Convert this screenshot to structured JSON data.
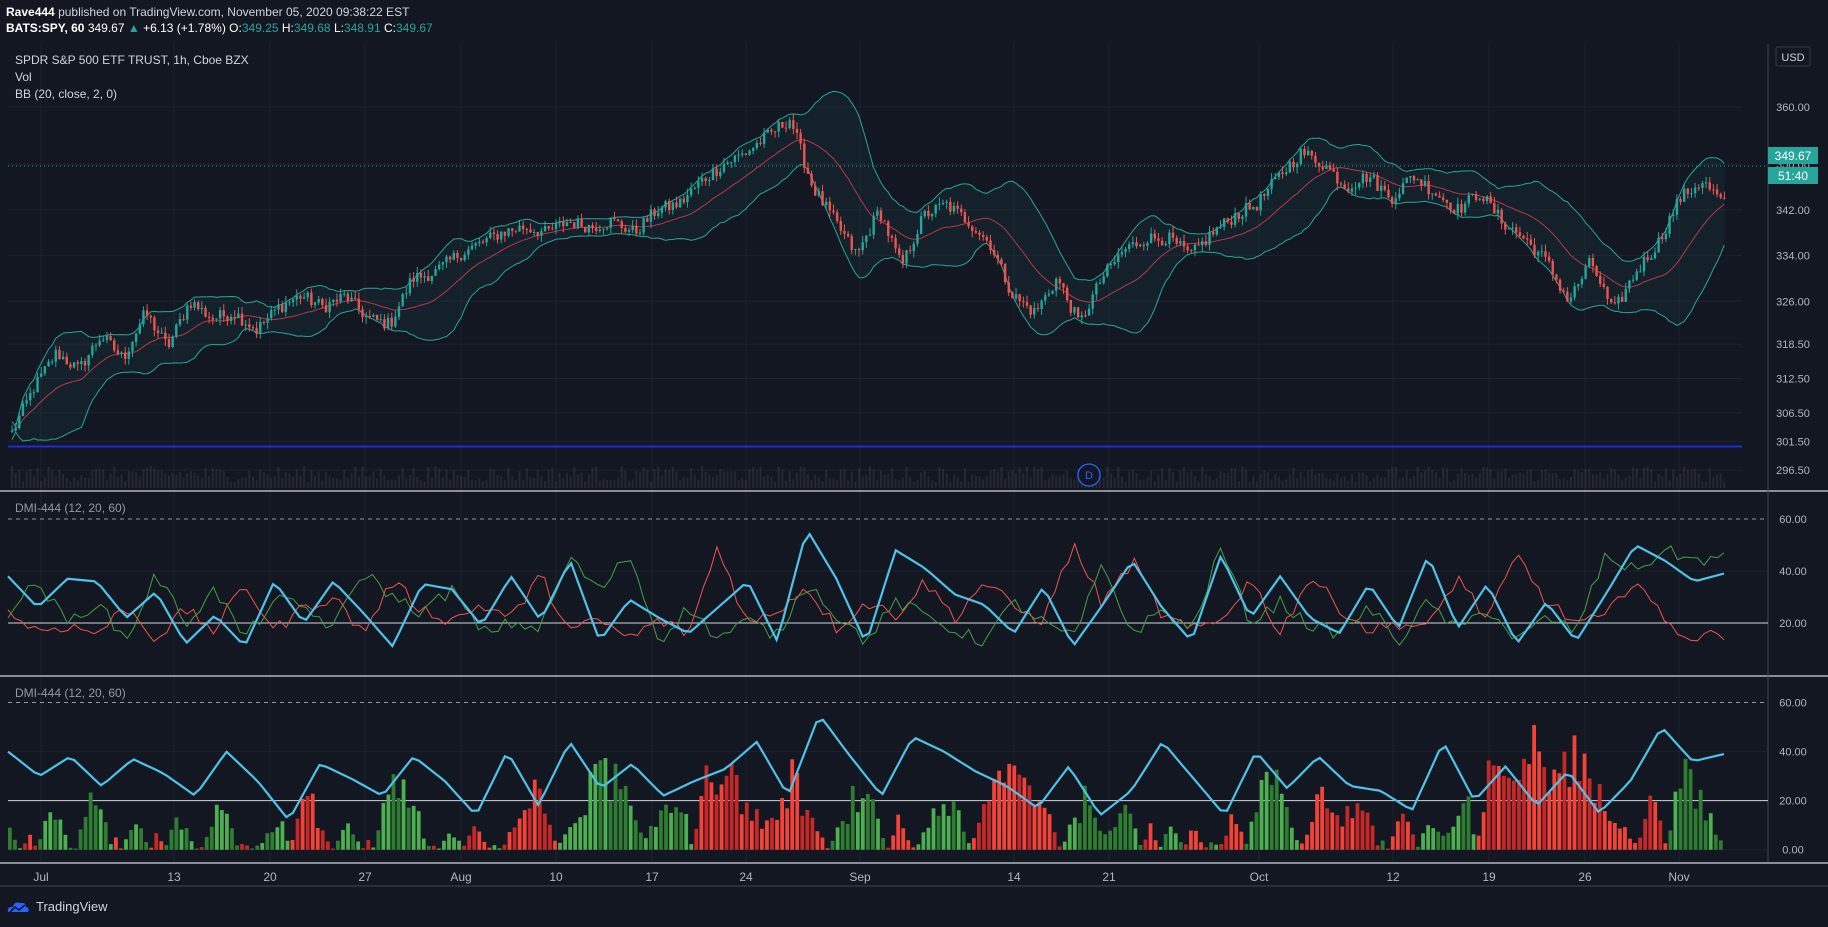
{
  "header": {
    "author": "Rave444",
    "published": "published on TradingView.com, November 05, 2020 09:38:22 EST",
    "symbol": "BATS:SPY, 60",
    "last": "349.67",
    "change": "+6.13 (+1.78%)",
    "o_label": "O:",
    "o_value": "349.25",
    "h_label": "H:",
    "h_value": "349.68",
    "l_label": "L:",
    "l_value": "348.91",
    "c_label": "C:",
    "c_value": "349.67"
  },
  "legends": {
    "main_title": "SPDR S&P 500 ETF TRUST, 1h, Cboe BZX",
    "vol": "Vol",
    "bb": "BB (20, close, 2, 0)",
    "dmi1": "DMI-444 (12, 20, 60)",
    "dmi2": "DMI-444 (12, 20, 60)"
  },
  "badges": {
    "currency": "USD",
    "price": "349.67",
    "countdown": "51:40",
    "dividend_marker": "D"
  },
  "colors": {
    "background": "#131722",
    "up": "#26a69a",
    "down": "#ef5350",
    "bb_band": "#26a69a",
    "bb_basis": "#b7364f",
    "adx": "#4dc3e8",
    "di_plus": "#43a047",
    "di_minus": "#ef5350",
    "support_line": "#1c2cd6"
  },
  "footer": {
    "brand": "TradingView"
  },
  "chart_data": [
    {
      "type": "candlestick",
      "title": "SPDR S&P 500 ETF TRUST, 1h, Cboe BZX",
      "x_ticks": [
        "Jul",
        "13",
        "20",
        "27",
        "Aug",
        "10",
        "17",
        "24",
        "Sep",
        "14",
        "21",
        "Oct",
        "12",
        "19",
        "26",
        "Nov"
      ],
      "y_ticks": [
        296.5,
        301.5,
        306.5,
        312.5,
        318.5,
        326.0,
        334.0,
        342.0,
        350.0,
        360.0
      ],
      "ylim": [
        293,
        371
      ],
      "close_path": [
        303,
        311,
        317,
        314,
        320,
        316,
        324,
        318,
        326,
        323,
        324,
        321,
        325,
        327,
        325,
        327,
        323,
        322,
        330,
        331,
        334,
        336,
        338,
        339,
        338,
        340,
        339,
        340,
        338,
        342,
        343,
        347,
        350,
        352,
        355,
        358,
        346,
        340,
        334,
        342,
        332,
        341,
        343,
        340,
        336,
        327,
        324,
        330,
        322,
        330,
        335,
        337,
        337,
        334,
        338,
        341,
        343,
        348,
        352,
        350,
        346,
        348,
        344,
        348,
        345,
        342,
        345,
        340,
        337,
        333,
        326,
        333,
        324,
        331,
        336,
        344,
        347,
        343
      ],
      "support_level": 300.6,
      "bollinger": {
        "length": 20,
        "source": "close",
        "mult": 2
      }
    },
    {
      "type": "line",
      "title": "DMI-444 (12, 20, 60)",
      "y_ticks": [
        20.0,
        40.0,
        60.0
      ],
      "ylim": [
        0,
        70
      ],
      "series": [
        {
          "role": "ADX",
          "values": [
            38,
            26,
            37,
            36,
            22,
            32,
            12,
            23,
            11,
            36,
            20,
            36,
            24,
            11,
            35,
            33,
            19,
            38,
            21,
            44,
            13,
            29,
            22,
            16,
            26,
            36,
            13,
            56,
            37,
            12,
            48,
            41,
            31,
            27,
            16,
            34,
            11,
            27,
            44,
            26,
            13,
            46,
            22,
            38,
            22,
            16,
            35,
            18,
            46,
            18,
            35,
            12,
            28,
            13,
            31,
            50,
            44,
            36,
            39
          ]
        },
        {
          "role": "+DI",
          "values": [
            24,
            36,
            20,
            28,
            13,
            39,
            20,
            33,
            14,
            29,
            26,
            18,
            40,
            30,
            24,
            33,
            16,
            20,
            18,
            45,
            32,
            47,
            13,
            26,
            14,
            21,
            15,
            36,
            23,
            13,
            28,
            23,
            17,
            13,
            28,
            20,
            14,
            42,
            16,
            25,
            17,
            49,
            20,
            28,
            19,
            16,
            26,
            13,
            28,
            17,
            26,
            13,
            22,
            17,
            46,
            40,
            48,
            44,
            45
          ]
        },
        {
          "role": "-DI",
          "values": [
            24,
            17,
            19,
            16,
            26,
            14,
            25,
            17,
            35,
            17,
            26,
            30,
            16,
            36,
            25,
            21,
            27,
            22,
            38,
            17,
            21,
            14,
            21,
            16,
            50,
            19,
            25,
            34,
            18,
            28,
            23,
            36,
            22,
            36,
            26,
            21,
            50,
            27,
            44,
            23,
            17,
            21,
            37,
            16,
            38,
            26,
            17,
            20,
            18,
            38,
            21,
            46,
            28,
            20,
            22,
            38,
            20,
            14,
            16
          ]
        }
      ]
    },
    {
      "type": "bar",
      "title": "DMI-444 (12, 20, 60)",
      "y_ticks": [
        0.0,
        20.0,
        40.0,
        60.0
      ],
      "ylim": [
        -5,
        70
      ],
      "histogram_envelope": [
        9,
        -8,
        25,
        -3,
        28,
        -5,
        13,
        -8,
        16,
        -3,
        22,
        -4,
        5,
        12,
        -30,
        -5,
        12,
        -6,
        31,
        24,
        -3,
        9,
        -12,
        4,
        -14,
        -30,
        3,
        20,
        40,
        30,
        3,
        20,
        20,
        -44,
        -35,
        -20,
        -10,
        -35,
        -14,
        5,
        26,
        18,
        -15,
        3,
        24,
        15,
        -16,
        -42,
        -33,
        -23,
        7,
        26,
        6,
        20,
        -12,
        17,
        -12,
        5,
        -20,
        22,
        40,
        2,
        -28,
        -14,
        -25,
        6,
        -22,
        13,
        6,
        23,
        -34,
        -37,
        -50,
        -37,
        -47,
        -28,
        -18,
        -4,
        -30,
        40,
        26,
        4
      ],
      "series": [
        {
          "role": "ADX",
          "values": [
            40,
            30,
            38,
            26,
            37,
            31,
            22,
            40,
            28,
            12,
            35,
            29,
            22,
            38,
            28,
            14,
            40,
            18,
            44,
            25,
            35,
            22,
            28,
            33,
            44,
            22,
            55,
            38,
            22,
            46,
            40,
            32,
            26,
            17,
            34,
            14,
            24,
            44,
            29,
            14,
            40,
            25,
            38,
            26,
            24,
            16,
            44,
            20,
            34,
            18,
            32,
            15,
            28,
            50,
            36,
            39
          ]
        }
      ]
    }
  ]
}
